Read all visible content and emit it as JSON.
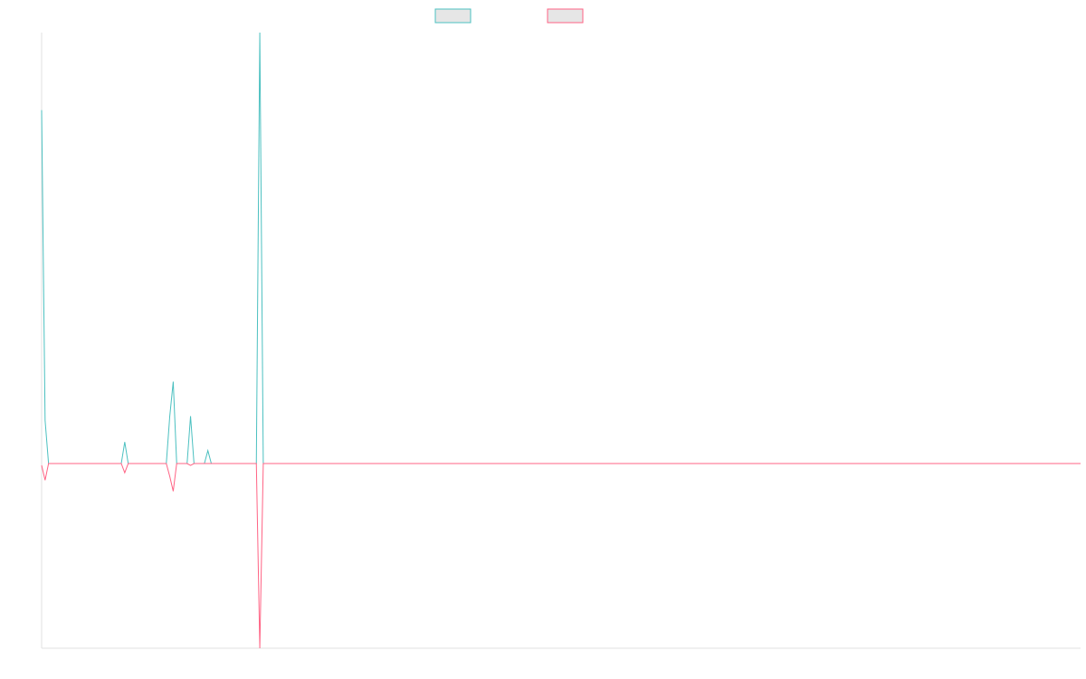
{
  "chart_data": {
    "type": "line",
    "title": "",
    "xlabel": "",
    "ylabel": "",
    "grid": false,
    "legend_position": "top",
    "x_count": 301,
    "ylim": [
      -1.0,
      1.0
    ],
    "zero_line": true,
    "series": [
      {
        "color": "#4bc0c0",
        "legend_fill": "#e6e6e6",
        "points": [
          [
            0,
            0.82
          ],
          [
            1,
            0.1
          ],
          [
            2,
            0.0
          ],
          [
            23,
            0.0
          ],
          [
            24,
            0.05
          ],
          [
            25,
            0.0
          ],
          [
            36,
            0.0
          ],
          [
            37,
            0.11
          ],
          [
            38,
            0.19
          ],
          [
            39,
            0.0
          ],
          [
            42,
            0.0
          ],
          [
            43,
            0.11
          ],
          [
            44,
            0.0
          ],
          [
            47,
            0.0
          ],
          [
            48,
            0.03
          ],
          [
            49,
            0.0
          ],
          [
            62,
            0.0
          ],
          [
            63,
            1.0
          ],
          [
            64,
            0.0
          ],
          [
            300,
            0.0
          ]
        ]
      },
      {
        "color": "#ff6384",
        "legend_fill": "#e6e6e6",
        "points": [
          [
            0,
            -0.01
          ],
          [
            1,
            -0.09
          ],
          [
            2,
            0.0
          ],
          [
            23,
            0.0
          ],
          [
            24,
            -0.05
          ],
          [
            25,
            0.0
          ],
          [
            36,
            0.0
          ],
          [
            37,
            -0.07
          ],
          [
            38,
            -0.15
          ],
          [
            39,
            0.0
          ],
          [
            42,
            0.0
          ],
          [
            43,
            -0.01
          ],
          [
            44,
            0.0
          ],
          [
            62,
            0.0
          ],
          [
            63,
            -1.0
          ],
          [
            64,
            0.0
          ],
          [
            300,
            0.0
          ]
        ]
      }
    ]
  }
}
